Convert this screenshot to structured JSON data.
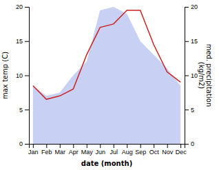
{
  "chart_data": {
    "type": "line",
    "categories": [
      "Jan",
      "Feb",
      "Mar",
      "Apr",
      "May",
      "Jun",
      "Jul",
      "Aug",
      "Sep",
      "Oct",
      "Nov",
      "Dec"
    ],
    "series": [
      {
        "type": "area",
        "color": "#c8d0f4",
        "axis": "y2",
        "values": [
          8.5,
          7.0,
          7.5,
          10.0,
          12.0,
          19.5,
          20.0,
          19.0,
          15.0,
          13.0,
          11.0,
          8.5
        ]
      },
      {
        "type": "line",
        "color": "#cc2222",
        "values": [
          8.5,
          6.5,
          7.0,
          8.0,
          13.0,
          17.0,
          17.5,
          19.5,
          19.5,
          14.5,
          10.5,
          9.0
        ]
      }
    ],
    "x_label": "date (month)",
    "y_label": "max temp (C)",
    "y2_label": "med. precipitation\n(kg/m2)",
    "ylim": [
      0,
      20
    ],
    "yticks": [
      0,
      5,
      10,
      15,
      20
    ],
    "y2lim": [
      0,
      20
    ],
    "y2ticks": [
      0,
      5,
      10,
      15,
      20
    ],
    "grid": false
  }
}
